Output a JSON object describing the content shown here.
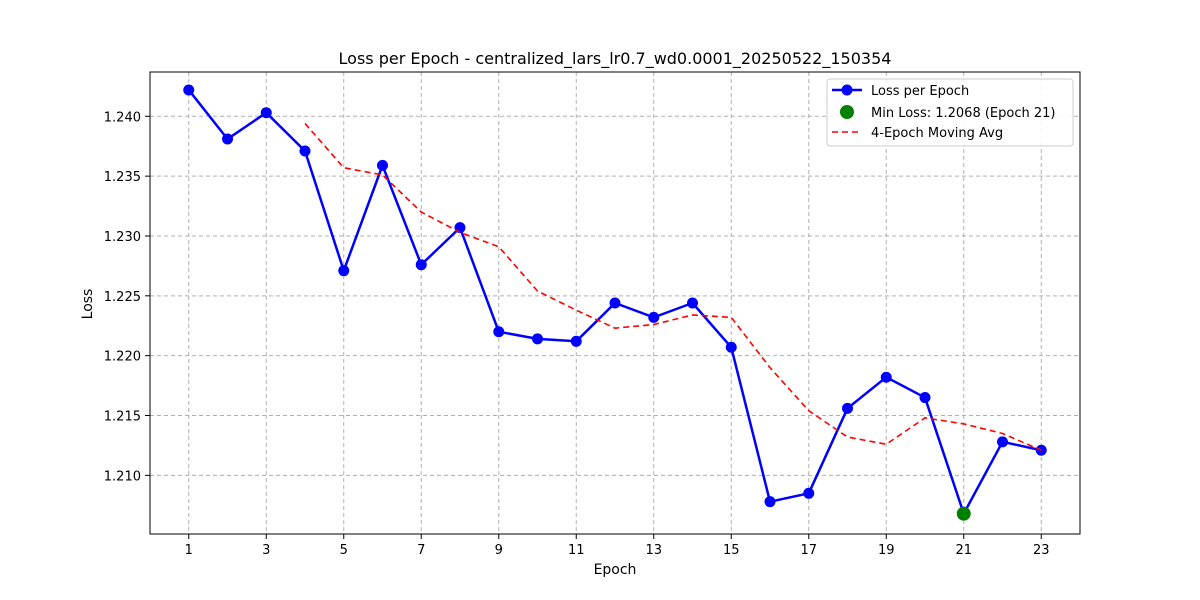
{
  "chart_data": {
    "type": "line",
    "title": "Loss per Epoch - centralized_lars_lr0.7_wd0.0001_20250522_150354",
    "xlabel": "Epoch",
    "ylabel": "Loss",
    "xlim": [
      0,
      24
    ],
    "ylim": [
      1.2051,
      1.2437
    ],
    "x_ticks": [
      1,
      3,
      5,
      7,
      9,
      11,
      13,
      15,
      17,
      19,
      21,
      23
    ],
    "y_ticks": [
      1.21,
      1.215,
      1.22,
      1.225,
      1.23,
      1.235,
      1.24
    ],
    "grid": true,
    "legend_position": "top-right",
    "series": [
      {
        "name": "Loss per Epoch",
        "style": "line-marker",
        "color": "#0000ff",
        "x": [
          1,
          2,
          3,
          4,
          5,
          6,
          7,
          8,
          9,
          10,
          11,
          12,
          13,
          14,
          15,
          16,
          17,
          18,
          19,
          20,
          21,
          22,
          23
        ],
        "values": [
          1.2422,
          1.2381,
          1.2403,
          1.2371,
          1.2271,
          1.2359,
          1.2276,
          1.2307,
          1.222,
          1.2214,
          1.2212,
          1.2244,
          1.2232,
          1.2244,
          1.2207,
          1.2078,
          1.2085,
          1.2156,
          1.2182,
          1.2165,
          1.2068,
          1.2128,
          1.2121
        ]
      },
      {
        "name": "Min Loss: 1.2068 (Epoch 21)",
        "style": "point",
        "color": "#008000",
        "x": [
          21
        ],
        "values": [
          1.2068
        ]
      },
      {
        "name": "4-Epoch Moving Avg",
        "style": "dashed",
        "color": "#ff0000",
        "x": [
          4,
          5,
          6,
          7,
          8,
          9,
          10,
          11,
          12,
          13,
          14,
          15,
          16,
          17,
          18,
          19,
          20,
          21,
          22,
          23
        ],
        "values": [
          1.2394,
          1.2357,
          1.2351,
          1.232,
          1.2303,
          1.2291,
          1.2254,
          1.2238,
          1.2223,
          1.2226,
          1.2234,
          1.2232,
          1.219,
          1.2154,
          1.2132,
          1.2126,
          1.2148,
          1.2143,
          1.2135,
          1.2121
        ]
      }
    ]
  }
}
